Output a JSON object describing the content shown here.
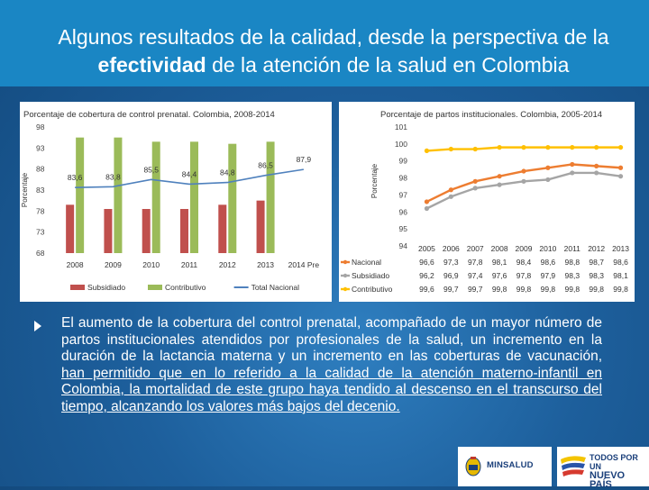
{
  "slide": {
    "title_line1": "Algunos resultados de la calidad, desde la perspectiva de la",
    "title_bold": "efectividad",
    "title_rest": " de la atención de la salud en Colombia",
    "bullet_plain": "El aumento de la cobertura del control prenatal, acompañado de un mayor número de partos institucionales atendidos por profesionales de la salud, un incremento en la duración de la lactancia materna y un incremento en las coberturas de vacunación, ",
    "bullet_underlined": "han permitido que en lo referido a la calidad de la atención materno-infantil en Colombia, la mortalidad de este grupo haya tendido al descenso en el transcurso del tiempo, alcanzando los valores más bajos del decenio.",
    "logos": {
      "minsalud": "MINSALUD",
      "todos_line1": "TODOS POR UN",
      "todos_line2": "NUEVO PAÍS"
    },
    "colors": {
      "title_band": "#1a86c4",
      "background": "#1d5f9c"
    }
  },
  "chart_data": [
    {
      "type": "bar+line",
      "title": "Porcentaje de cobertura de control prenatal. Colombia, 2008-2014",
      "ylabel": "Porcentaje",
      "ylim": [
        68,
        98
      ],
      "yticks": [
        68,
        73,
        78,
        83,
        88,
        93,
        98
      ],
      "categories": [
        "2008",
        "2009",
        "2010",
        "2011",
        "2012",
        "2013",
        "2014 Pre"
      ],
      "series": [
        {
          "name": "Subsidiado",
          "kind": "bar",
          "color": "#c0504d",
          "values": [
            79.5,
            78.5,
            78.5,
            78.5,
            79.5,
            80.5,
            null
          ]
        },
        {
          "name": "Contributivo",
          "kind": "bar",
          "color": "#9bbb59",
          "values": [
            95.5,
            95.5,
            94.5,
            94.5,
            94.0,
            94.5,
            null
          ]
        },
        {
          "name": "Total Nacional",
          "kind": "line",
          "color": "#4f81bd",
          "values": [
            83.6,
            83.8,
            85.5,
            84.4,
            84.8,
            86.5,
            87.9
          ]
        }
      ],
      "data_labels": [
        "83,6",
        "83,8",
        "85,5",
        "84,4",
        "84,8",
        "86,5",
        "87,9"
      ],
      "legend_position": "bottom",
      "grid": false
    },
    {
      "type": "line",
      "title": "Porcentaje de partos institucionales. Colombia, 2005-2014",
      "ylabel": "Porcentaje",
      "ylim": [
        94,
        101
      ],
      "yticks": [
        94,
        95,
        96,
        97,
        98,
        99,
        100,
        101
      ],
      "categories": [
        "2005",
        "2006",
        "2007",
        "2008",
        "2009",
        "2010",
        "2011",
        "2012",
        "2013"
      ],
      "series": [
        {
          "name": "Nacional",
          "color": "#ed7d31",
          "values": [
            96.6,
            97.3,
            97.8,
            98.1,
            98.4,
            98.6,
            98.8,
            98.7,
            98.6
          ]
        },
        {
          "name": "Subsidiado",
          "color": "#a5a5a5",
          "values": [
            96.2,
            96.9,
            97.4,
            97.6,
            97.8,
            97.9,
            98.3,
            98.3,
            98.1
          ]
        },
        {
          "name": "Contributivo",
          "color": "#ffc000",
          "values": [
            99.6,
            99.7,
            99.7,
            99.8,
            99.8,
            99.8,
            99.8,
            99.8,
            99.8
          ]
        }
      ],
      "table": {
        "rows": [
          {
            "label": "Nacional",
            "cells": [
              "96,6",
              "97,3",
              "97,8",
              "98,1",
              "98,4",
              "98,6",
              "98,8",
              "98,7",
              "98,6"
            ]
          },
          {
            "label": "Subsidiado",
            "cells": [
              "96,2",
              "96,9",
              "97,4",
              "97,6",
              "97,8",
              "97,9",
              "98,3",
              "98,3",
              "98,1"
            ]
          },
          {
            "label": "Contributivo",
            "cells": [
              "99,6",
              "99,7",
              "99,7",
              "99,8",
              "99,8",
              "99,8",
              "99,8",
              "99,8",
              "99,8"
            ]
          }
        ]
      },
      "legend_position": "data-table",
      "grid": false
    }
  ]
}
